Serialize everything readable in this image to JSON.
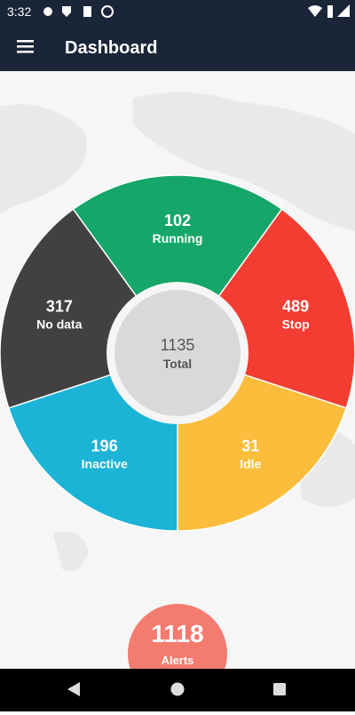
{
  "status_bar": {
    "time": "3:32"
  },
  "app_bar": {
    "title": "Dashboard"
  },
  "summary": {
    "total": {
      "value": 1135,
      "label": "Total"
    },
    "segments": [
      {
        "value": 102,
        "label": "Running",
        "color": "#16a66a"
      },
      {
        "value": 489,
        "label": "Stop",
        "color": "#f33d32"
      },
      {
        "value": 31,
        "label": "Idle",
        "color": "#fbbd3b"
      },
      {
        "value": 196,
        "label": "Inactive",
        "color": "#1bb3d6"
      },
      {
        "value": 317,
        "label": "No data",
        "color": "#434041"
      }
    ]
  },
  "alerts": {
    "value": 1118,
    "label": "Alerts"
  }
}
